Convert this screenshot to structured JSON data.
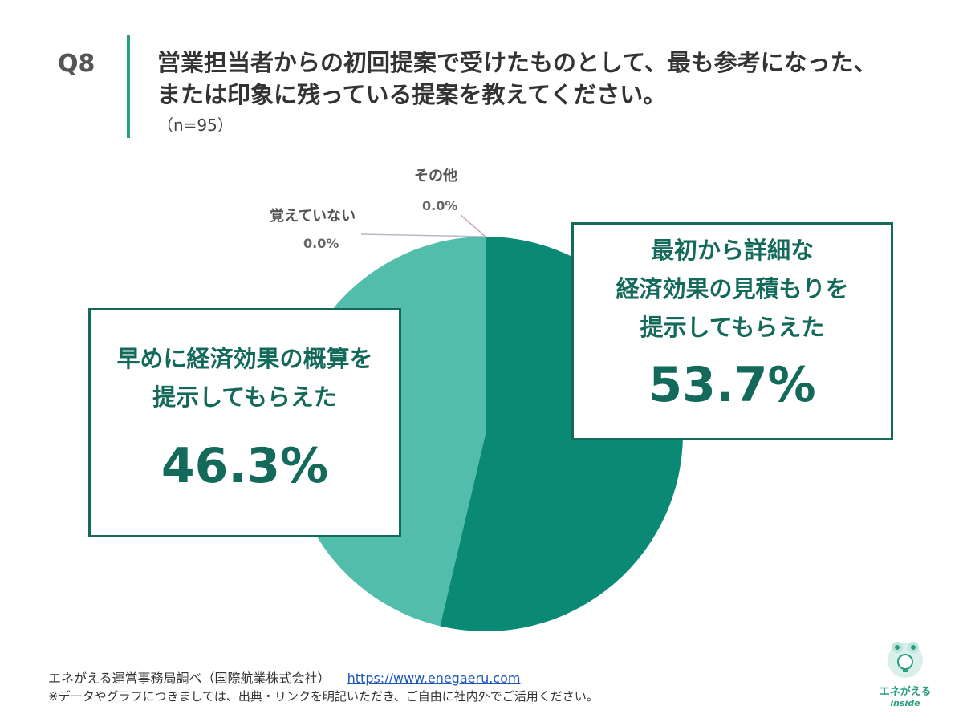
{
  "header": {
    "q_number": "Q8",
    "title_line1": "営業担当者からの初回提案で受けたものとして、最も参考になった、",
    "title_line2": "または印象に残っている提案を教えてください。",
    "sample": "（n=95）"
  },
  "chart_data": {
    "type": "pie",
    "title": "",
    "slices": [
      {
        "label": "最初から詳細な\n経済効果の見積もりを\n提示してもらえた",
        "value": 53.7,
        "value_label": "53.7%",
        "color": "#0a8a74"
      },
      {
        "label": "早めに経済効果の概算を\n提示してもらえた",
        "value": 46.3,
        "value_label": "46.3%",
        "color": "#52bdab"
      },
      {
        "label": "覚えていない",
        "value": 0.0,
        "value_label": "0.0%",
        "color": "#b9b9c9"
      },
      {
        "label": "その他",
        "value": 0.0,
        "value_label": "0.0%",
        "color": "#c6aac6"
      }
    ],
    "start_angle_deg": 0,
    "direction": "clockwise",
    "legend": "none"
  },
  "footer": {
    "source": "エネがえる運営事務局調べ（国際航業株式会社）",
    "url": "https://www.enegaeru.com",
    "note": "※データやグラフにつきましては、出典・リンクを明記いただき、ご自由に社内外でご活用ください。"
  },
  "logo": {
    "text": "エネがえる",
    "sub": "inside"
  }
}
